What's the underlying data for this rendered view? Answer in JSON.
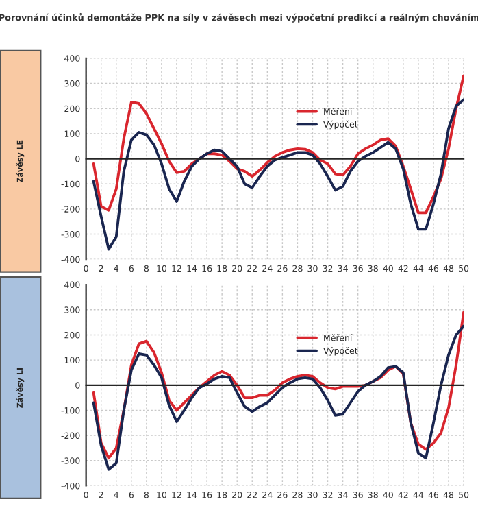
{
  "chart_data": [
    {
      "type": "line",
      "title": "Porovnání účinků demontáže PPK na síly v závěsech mezi výpočetní predikcí a reálným chováním",
      "ylabel": "Závěsy LE",
      "x": [
        1,
        2,
        3,
        4,
        5,
        6,
        7,
        8,
        9,
        10,
        11,
        12,
        13,
        14,
        15,
        16,
        17,
        18,
        19,
        20,
        21,
        22,
        23,
        24,
        25,
        26,
        27,
        28,
        29,
        30,
        31,
        32,
        33,
        34,
        35,
        36,
        37,
        38,
        39,
        40,
        41,
        42,
        43,
        44,
        45,
        46,
        47,
        48,
        49,
        50
      ],
      "series": [
        {
          "name": "Měření",
          "color": "#d9262e",
          "values": [
            -20,
            -190,
            -205,
            -120,
            80,
            225,
            220,
            180,
            120,
            60,
            -10,
            -55,
            -50,
            -20,
            0,
            20,
            20,
            15,
            -10,
            -40,
            -50,
            -70,
            -45,
            -15,
            10,
            25,
            35,
            40,
            38,
            25,
            -5,
            -20,
            -60,
            -65,
            -30,
            20,
            40,
            55,
            75,
            80,
            50,
            -30,
            -120,
            -215,
            -215,
            -150,
            -80,
            40,
            200,
            330
          ]
        },
        {
          "name": "Výpočet",
          "color": "#1a2650",
          "values": [
            -90,
            -230,
            -360,
            -310,
            -50,
            75,
            105,
            95,
            55,
            -20,
            -120,
            -170,
            -90,
            -30,
            0,
            20,
            35,
            30,
            0,
            -30,
            -100,
            -115,
            -70,
            -30,
            -5,
            5,
            15,
            25,
            25,
            15,
            -20,
            -70,
            -125,
            -110,
            -50,
            -10,
            10,
            25,
            45,
            65,
            40,
            -40,
            -180,
            -280,
            -280,
            -180,
            -60,
            120,
            210,
            235
          ]
        }
      ],
      "xlim": [
        0,
        50
      ],
      "xticks": [
        0,
        2,
        4,
        6,
        8,
        10,
        12,
        14,
        16,
        18,
        20,
        22,
        24,
        26,
        28,
        30,
        32,
        34,
        36,
        38,
        40,
        42,
        44,
        46,
        48,
        50
      ],
      "ylim": [
        -400,
        400
      ],
      "yticks": [
        -400,
        -300,
        -200,
        -100,
        0,
        100,
        200,
        300,
        400
      ],
      "grid": true,
      "legend": "center",
      "marker": "none",
      "line_style": "solid"
    },
    {
      "type": "line",
      "ylabel": "Závěsy LI",
      "x": [
        1,
        2,
        3,
        4,
        5,
        6,
        7,
        8,
        9,
        10,
        11,
        12,
        13,
        14,
        15,
        16,
        17,
        18,
        19,
        20,
        21,
        22,
        23,
        24,
        25,
        26,
        27,
        28,
        29,
        30,
        31,
        32,
        33,
        34,
        35,
        36,
        37,
        38,
        39,
        40,
        41,
        42,
        43,
        44,
        45,
        46,
        47,
        48,
        49,
        50
      ],
      "series": [
        {
          "name": "Měření",
          "color": "#d9262e",
          "values": [
            -30,
            -230,
            -290,
            -250,
            -100,
            80,
            165,
            175,
            130,
            50,
            -60,
            -100,
            -70,
            -40,
            -10,
            15,
            40,
            55,
            40,
            0,
            -50,
            -50,
            -40,
            -40,
            -20,
            10,
            25,
            35,
            40,
            35,
            10,
            -10,
            -15,
            -5,
            -5,
            -5,
            0,
            15,
            30,
            60,
            75,
            45,
            -150,
            -235,
            -255,
            -230,
            -190,
            -90,
            80,
            290
          ]
        },
        {
          "name": "Výpočet",
          "color": "#1a2650",
          "values": [
            -70,
            -240,
            -335,
            -310,
            -100,
            60,
            125,
            120,
            80,
            30,
            -80,
            -145,
            -100,
            -50,
            -10,
            5,
            25,
            35,
            30,
            -30,
            -85,
            -105,
            -85,
            -70,
            -40,
            -10,
            10,
            25,
            30,
            25,
            -10,
            -60,
            -120,
            -115,
            -70,
            -25,
            0,
            15,
            35,
            70,
            75,
            50,
            -150,
            -270,
            -290,
            -150,
            0,
            120,
            200,
            235
          ]
        }
      ],
      "xlim": [
        0,
        50
      ],
      "xticks": [
        0,
        2,
        4,
        6,
        8,
        10,
        12,
        14,
        16,
        18,
        20,
        22,
        24,
        26,
        28,
        30,
        32,
        34,
        36,
        38,
        40,
        42,
        44,
        46,
        48,
        50
      ],
      "ylim": [
        -400,
        400
      ],
      "yticks": [
        -400,
        -300,
        -200,
        -100,
        0,
        100,
        200,
        300,
        400
      ],
      "grid": true,
      "legend": "center",
      "marker": "none",
      "line_style": "solid"
    }
  ]
}
